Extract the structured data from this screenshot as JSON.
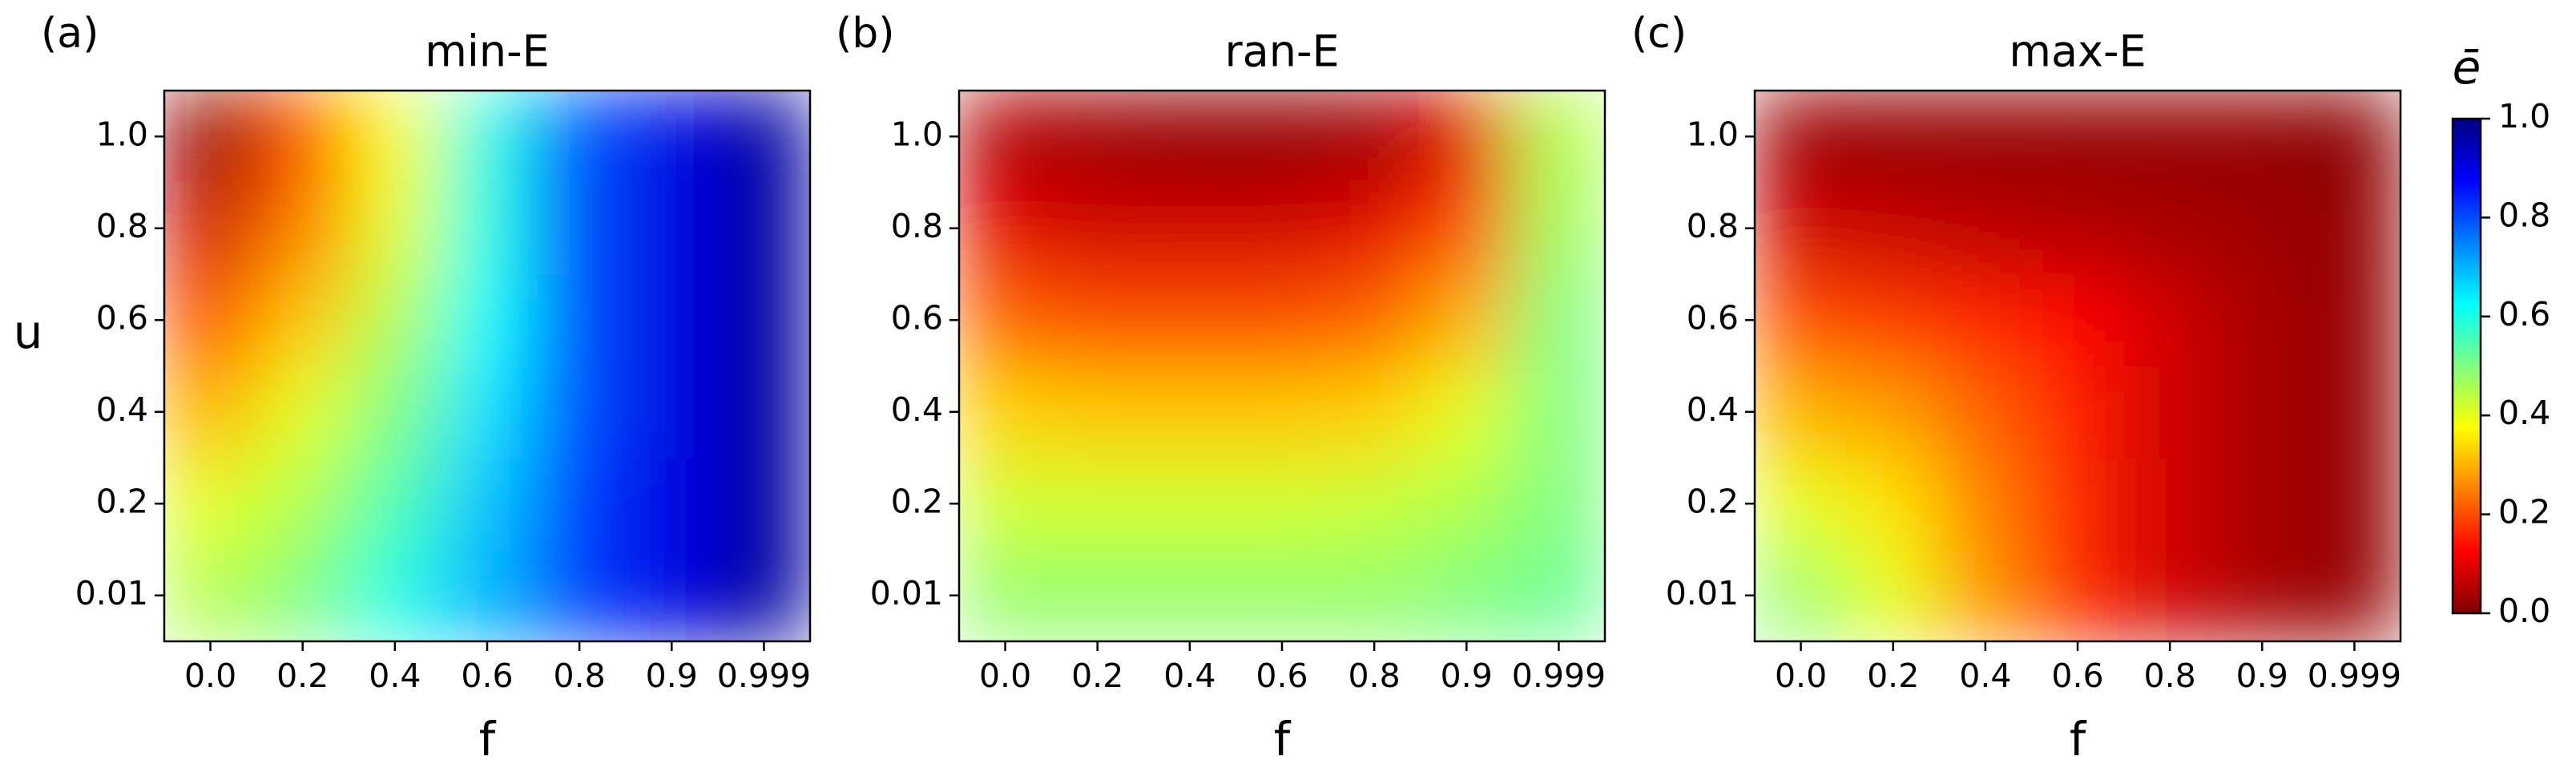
{
  "chart_data": [
    {
      "type": "heatmap",
      "panel_label": "(a)",
      "title": "min-E",
      "x_label": "f",
      "y_label": "u",
      "x_categories": [
        "0.0",
        "0.2",
        "0.4",
        "0.6",
        "0.8",
        "0.9",
        "0.999"
      ],
      "y_categories": [
        "0.01",
        "0.2",
        "0.4",
        "0.6",
        "0.8",
        "1.0"
      ],
      "values": [
        [
          0.45,
          0.5,
          0.6,
          0.7,
          0.82,
          0.9,
          0.97
        ],
        [
          0.4,
          0.45,
          0.55,
          0.68,
          0.82,
          0.9,
          0.97
        ],
        [
          0.3,
          0.4,
          0.5,
          0.65,
          0.8,
          0.9,
          0.97
        ],
        [
          0.2,
          0.32,
          0.45,
          0.62,
          0.8,
          0.9,
          0.97
        ],
        [
          0.08,
          0.25,
          0.4,
          0.6,
          0.8,
          0.9,
          0.97
        ],
        [
          0.02,
          0.2,
          0.38,
          0.6,
          0.8,
          0.9,
          0.97
        ]
      ]
    },
    {
      "type": "heatmap",
      "panel_label": "(b)",
      "title": "ran-E",
      "x_label": "f",
      "x_categories": [
        "0.0",
        "0.2",
        "0.4",
        "0.6",
        "0.8",
        "0.9",
        "0.999"
      ],
      "y_categories": [
        "0.01",
        "0.2",
        "0.4",
        "0.6",
        "0.8",
        "1.0"
      ],
      "values": [
        [
          0.48,
          0.48,
          0.48,
          0.48,
          0.48,
          0.5,
          0.52
        ],
        [
          0.42,
          0.42,
          0.42,
          0.42,
          0.43,
          0.45,
          0.5
        ],
        [
          0.33,
          0.32,
          0.32,
          0.32,
          0.33,
          0.4,
          0.5
        ],
        [
          0.22,
          0.2,
          0.2,
          0.2,
          0.22,
          0.3,
          0.5
        ],
        [
          0.1,
          0.08,
          0.08,
          0.08,
          0.1,
          0.2,
          0.47
        ],
        [
          0.05,
          0.03,
          0.02,
          0.02,
          0.03,
          0.1,
          0.45
        ]
      ]
    },
    {
      "type": "heatmap",
      "panel_label": "(c)",
      "title": "max-E",
      "x_label": "f",
      "x_categories": [
        "0.0",
        "0.2",
        "0.4",
        "0.6",
        "0.8",
        "0.9",
        "0.999"
      ],
      "y_categories": [
        "0.01",
        "0.2",
        "0.4",
        "0.6",
        "0.8",
        "1.0"
      ],
      "values": [
        [
          0.48,
          0.4,
          0.27,
          0.16,
          0.08,
          0.04,
          0.02
        ],
        [
          0.4,
          0.35,
          0.25,
          0.16,
          0.08,
          0.04,
          0.02
        ],
        [
          0.3,
          0.28,
          0.22,
          0.15,
          0.08,
          0.04,
          0.02
        ],
        [
          0.2,
          0.18,
          0.16,
          0.13,
          0.08,
          0.04,
          0.02
        ],
        [
          0.08,
          0.07,
          0.06,
          0.05,
          0.04,
          0.03,
          0.02
        ],
        [
          0.03,
          0.02,
          0.02,
          0.02,
          0.02,
          0.02,
          0.01
        ]
      ]
    }
  ],
  "colorbar": {
    "label": "ē",
    "colormap": "jet_r",
    "lim": [
      0,
      1
    ],
    "ticks": [
      {
        "value": 0,
        "label": "0.0"
      },
      0.2,
      0.4,
      0.6,
      0.8,
      {
        "value": 1,
        "label": "1.0"
      }
    ]
  }
}
